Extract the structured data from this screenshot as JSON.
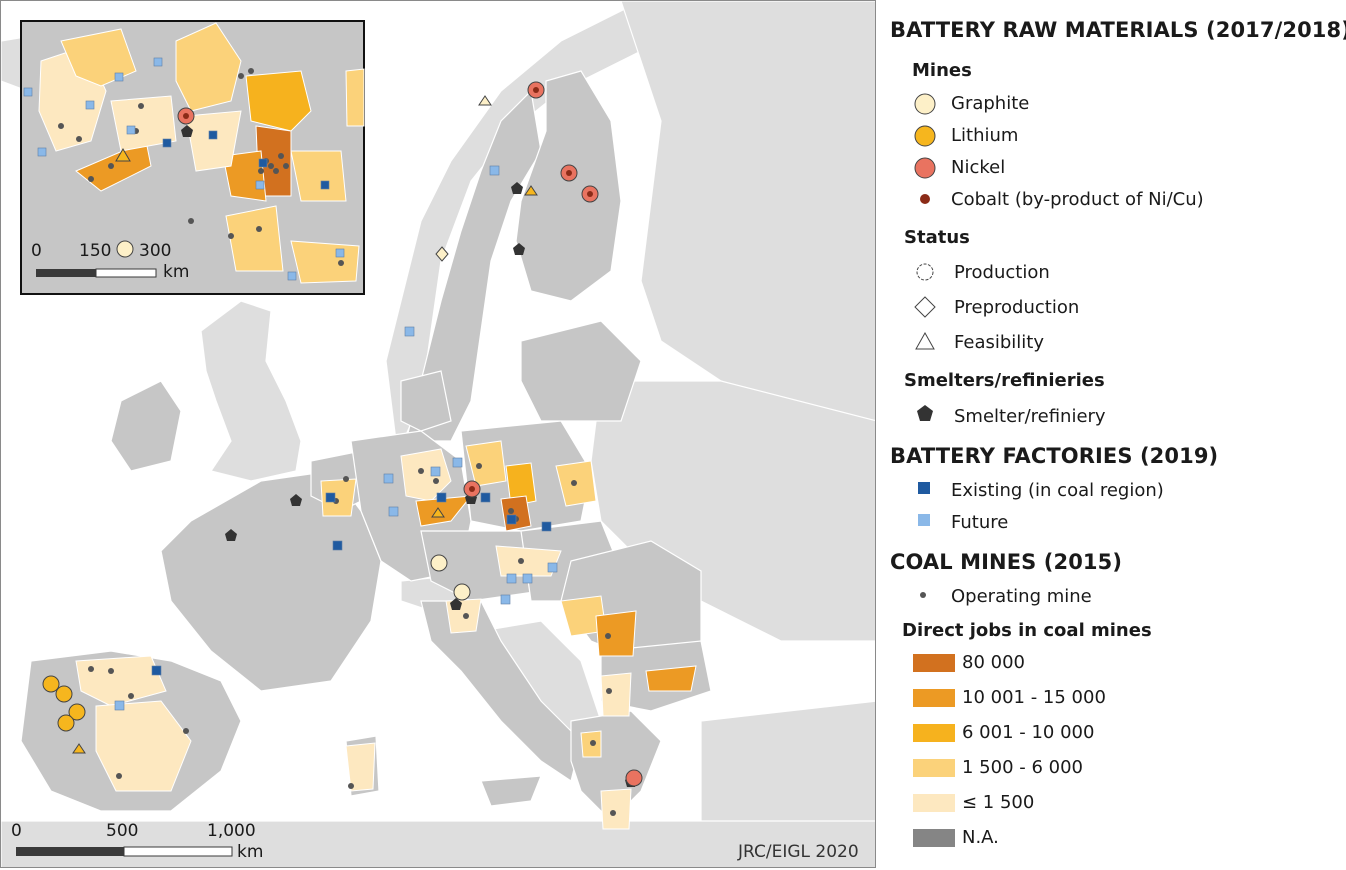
{
  "credit": "JRC/EIGL 2020",
  "scale_main": {
    "ticks": [
      "0",
      "500",
      "1,000"
    ],
    "unit": "km"
  },
  "scale_inset": {
    "ticks": [
      "0",
      "150",
      "300"
    ],
    "unit": "km"
  },
  "legend": {
    "raw_materials_title": "BATTERY RAW MATERIALS (2017/2018)",
    "mines_title": "Mines",
    "mines": [
      {
        "label": "Graphite",
        "color": "#fdf0c8"
      },
      {
        "label": "Lithium",
        "color": "#f6b61e"
      },
      {
        "label": "Nickel",
        "color": "#e97360"
      },
      {
        "label": "Cobalt (by-product of Ni/Cu)",
        "color": "#8b2b17"
      }
    ],
    "status_title": "Status",
    "status": [
      {
        "label": "Production",
        "icon": "circle-outline-icon"
      },
      {
        "label": "Preproduction",
        "icon": "diamond-outline-icon"
      },
      {
        "label": "Feasibility",
        "icon": "triangle-outline-icon"
      }
    ],
    "smelters_title": "Smelters/refinieries",
    "smelter_label": "Smelter/refiniery",
    "factories_title": "BATTERY FACTORIES (2019)",
    "factories": [
      {
        "label": "Existing (in coal region)",
        "color": "#1f5aa0"
      },
      {
        "label": "Future",
        "color": "#8ab8e8"
      }
    ],
    "coal_title": "COAL MINES (2015)",
    "operating_mine_label": "Operating mine",
    "jobs_title": "Direct jobs in coal mines",
    "jobs_classes": [
      {
        "label": "80 000",
        "color": "#d2711f"
      },
      {
        "label": "10 001 - 15 000",
        "color": "#ec9a24"
      },
      {
        "label": "6 001 - 10 000",
        "color": "#f6b21e"
      },
      {
        "label": "1 500 - 6 000",
        "color": "#fbd27a"
      },
      {
        "label": "≤ 1 500",
        "color": "#fde8c0"
      },
      {
        "label": "N.A.",
        "color": "#858585"
      }
    ]
  }
}
